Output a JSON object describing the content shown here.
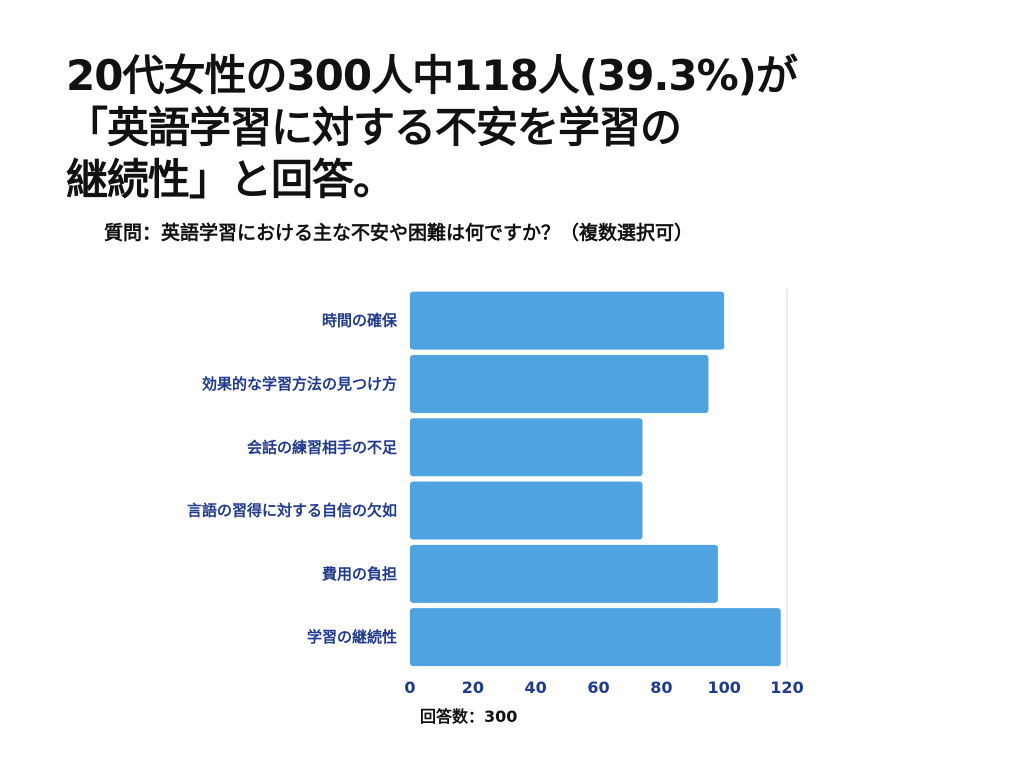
{
  "title_lines": [
    "20代女性の300人中118人(39.3%)が",
    "「英語学習に対する不安を学習の",
    "継続性」と回答。"
  ],
  "question": "質問：英語学習における主な不安や困難は何ですか？（複数選択可）",
  "respondents": "回答数：300",
  "colors": {
    "bar": "#4fa3e0",
    "label": "#1f3a8f",
    "grid": "#d9d9d9"
  },
  "chart_data": {
    "type": "bar",
    "orientation": "horizontal",
    "categories": [
      "時間の確保",
      "効果的な学習方法の見つけ方",
      "会話の練習相手の不足",
      "言語の習得に対する自信の欠如",
      "費用の負担",
      "学習の継続性"
    ],
    "values": [
      100,
      95,
      74,
      74,
      98,
      118
    ],
    "xlim": [
      0,
      120
    ],
    "xticks": [
      "0",
      "20",
      "40",
      "60",
      "80",
      "100",
      "120"
    ],
    "grid": true,
    "legend": "none"
  }
}
